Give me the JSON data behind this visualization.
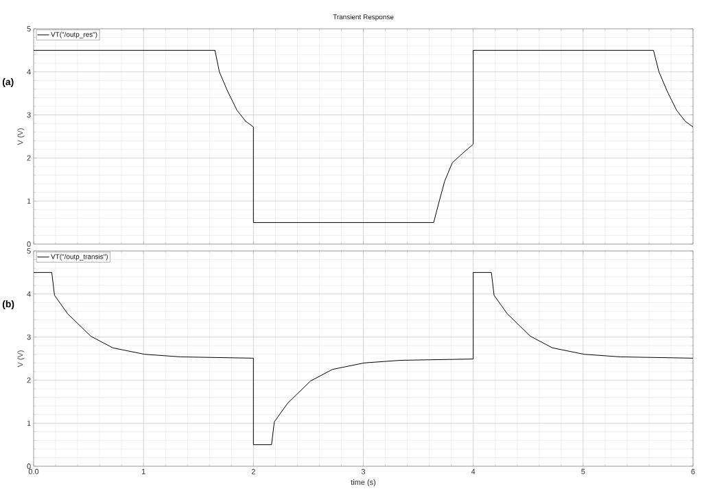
{
  "chart_data": [
    {
      "type": "line",
      "title": "Transient Response",
      "ylabel": "V (V)",
      "annotations": [
        "(a)"
      ],
      "legend": "top left",
      "grid": true,
      "tick_labels": "y",
      "xlim": [
        0,
        6
      ],
      "ylim": [
        0,
        5
      ],
      "xticks": [
        0,
        1,
        2,
        3,
        4,
        5,
        6
      ],
      "yticks": [
        0,
        1,
        2,
        3,
        4,
        5
      ],
      "series": [
        {
          "name": "VT(\"/outp_res\")",
          "color": "#000000",
          "x": [
            0,
            1.65,
            1.69,
            1.765,
            1.85,
            1.93,
            2.0,
            2.0,
            3.64,
            3.69,
            3.74,
            3.81,
            3.9,
            4.0,
            4.0,
            5.64,
            5.69,
            5.765,
            5.85,
            5.93,
            6.0
          ],
          "values": [
            4.5,
            4.5,
            4.0,
            3.55,
            3.11,
            2.85,
            2.72,
            0.5,
            0.5,
            0.99,
            1.46,
            1.89,
            2.1,
            2.32,
            4.5,
            4.5,
            4.0,
            3.55,
            3.11,
            2.85,
            2.72
          ]
        }
      ]
    },
    {
      "type": "line",
      "xlabel": "time (s)",
      "ylabel": "V (V)",
      "annotations": [
        "(b)"
      ],
      "legend": "top left",
      "grid": true,
      "xlim": [
        0,
        6
      ],
      "ylim": [
        0,
        5
      ],
      "xticks": [
        {
          "value": 0,
          "label": "0.0"
        },
        1,
        2,
        3,
        4,
        5,
        6
      ],
      "yticks": [
        0,
        1,
        2,
        3,
        4,
        5
      ],
      "series": [
        {
          "name": "VT(\"/outp_transis\")",
          "color": "#000000",
          "x": [
            0,
            0.165,
            0.19,
            0.31,
            0.52,
            0.72,
            1.01,
            1.34,
            1.99,
            2.0,
            2.0,
            2.165,
            2.19,
            2.31,
            2.52,
            2.72,
            3.01,
            3.34,
            3.99,
            4.0,
            4.0,
            4.165,
            4.19,
            4.31,
            4.52,
            4.72,
            5.01,
            5.34,
            6.0
          ],
          "values": [
            4.5,
            4.5,
            3.97,
            3.54,
            3.02,
            2.75,
            2.6,
            2.54,
            2.51,
            2.51,
            0.5,
            0.5,
            1.03,
            1.46,
            1.98,
            2.25,
            2.4,
            2.46,
            2.49,
            2.49,
            4.5,
            4.5,
            3.97,
            3.54,
            3.02,
            2.75,
            2.6,
            2.54,
            2.51
          ]
        }
      ]
    }
  ]
}
